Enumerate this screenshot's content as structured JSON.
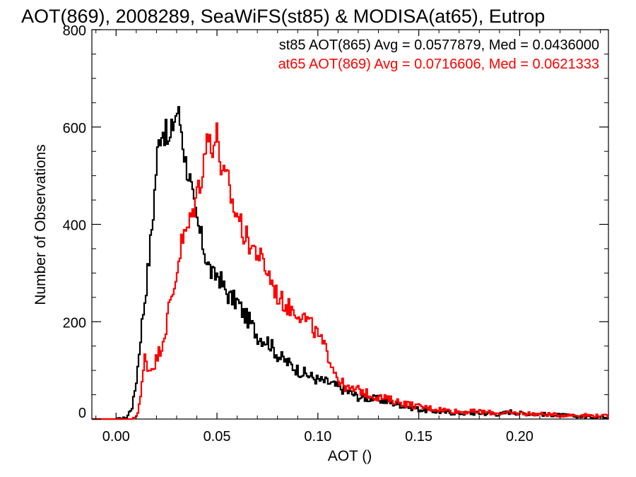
{
  "chart_data": {
    "type": "line",
    "title": "AOT(869), 2008289, SeaWiFS(st85) & MODISA(at65), Eutrop",
    "xlabel": "AOT ()",
    "ylabel": "Number of Observations",
    "xlim": [
      -0.012,
      0.244
    ],
    "ylim": [
      0,
      800
    ],
    "xticks": [
      0.0,
      0.05,
      0.1,
      0.15,
      0.2
    ],
    "xtick_labels": [
      "0.00",
      "0.05",
      "0.10",
      "0.15",
      "0.20"
    ],
    "yticks": [
      0,
      200,
      400,
      600,
      800
    ],
    "ytick_labels": [
      "0",
      "200",
      "400",
      "600",
      "800"
    ],
    "grid": false,
    "legend_placement": "top-right",
    "series": [
      {
        "name": "st85",
        "legend_text": "st85 AOT(865) Avg = 0.0577879, Med = 0.0436000",
        "color": "#000000",
        "x": [
          -0.012,
          0.0,
          0.005,
          0.008,
          0.01,
          0.012,
          0.014,
          0.016,
          0.018,
          0.02,
          0.022,
          0.024,
          0.026,
          0.028,
          0.03,
          0.032,
          0.034,
          0.036,
          0.038,
          0.04,
          0.042,
          0.045,
          0.048,
          0.05,
          0.053,
          0.056,
          0.06,
          0.063,
          0.066,
          0.07,
          0.075,
          0.08,
          0.085,
          0.09,
          0.095,
          0.1,
          0.105,
          0.11,
          0.115,
          0.12,
          0.13,
          0.14,
          0.15,
          0.16,
          0.17,
          0.18,
          0.19,
          0.195,
          0.2,
          0.21,
          0.22,
          0.23,
          0.244
        ],
        "y": [
          0,
          0,
          3,
          30,
          90,
          180,
          250,
          330,
          420,
          540,
          600,
          590,
          560,
          610,
          635,
          600,
          530,
          500,
          440,
          400,
          370,
          320,
          290,
          300,
          270,
          250,
          240,
          215,
          200,
          170,
          160,
          130,
          115,
          100,
          90,
          80,
          75,
          65,
          55,
          45,
          40,
          30,
          20,
          15,
          12,
          12,
          10,
          15,
          12,
          10,
          8,
          5,
          4
        ]
      },
      {
        "name": "at65",
        "legend_text": "at65 AOT(869) Avg = 0.0716606, Med = 0.0621333",
        "color": "#ff0000",
        "x": [
          -0.012,
          0.008,
          0.01,
          0.012,
          0.014,
          0.016,
          0.018,
          0.02,
          0.022,
          0.024,
          0.026,
          0.028,
          0.03,
          0.032,
          0.034,
          0.036,
          0.038,
          0.04,
          0.042,
          0.044,
          0.046,
          0.048,
          0.05,
          0.052,
          0.055,
          0.058,
          0.06,
          0.063,
          0.066,
          0.07,
          0.075,
          0.08,
          0.085,
          0.09,
          0.095,
          0.1,
          0.105,
          0.11,
          0.115,
          0.12,
          0.125,
          0.13,
          0.14,
          0.15,
          0.16,
          0.17,
          0.18,
          0.19,
          0.2,
          0.21,
          0.22,
          0.23,
          0.244
        ],
        "y": [
          0,
          0,
          8,
          50,
          130,
          100,
          110,
          125,
          150,
          180,
          230,
          260,
          310,
          360,
          380,
          400,
          430,
          470,
          500,
          560,
          580,
          560,
          590,
          500,
          490,
          430,
          420,
          380,
          360,
          340,
          300,
          250,
          230,
          220,
          200,
          170,
          130,
          80,
          60,
          60,
          50,
          45,
          35,
          25,
          20,
          15,
          15,
          12,
          12,
          10,
          8,
          8,
          6
        ]
      }
    ]
  }
}
